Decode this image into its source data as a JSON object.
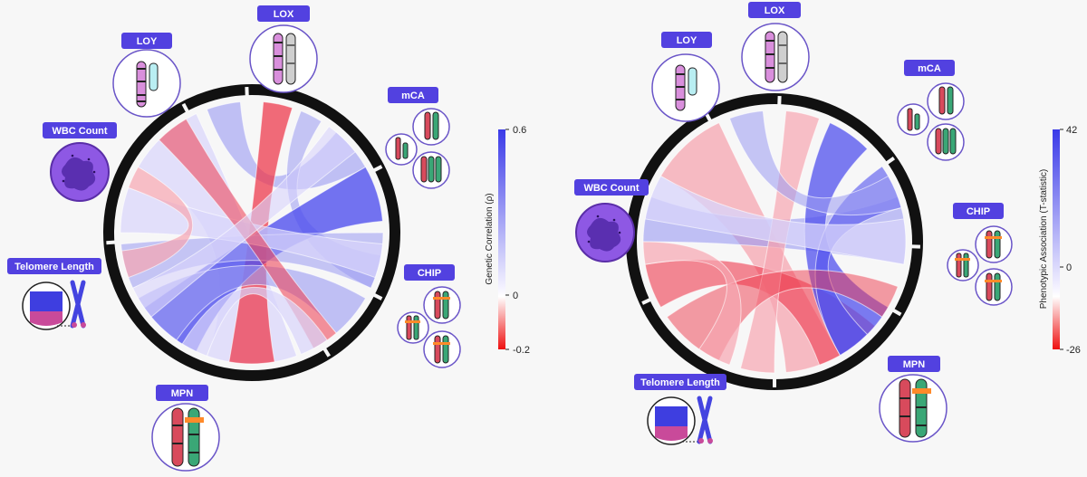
{
  "panels": [
    {
      "id": "left",
      "chord_colors": {
        "positive": "#3b3be6",
        "negative": "#e81a32",
        "neutral": "#ffffff"
      },
      "labels": {
        "loy": "LOY",
        "lox": "LOX",
        "mca": "mCA",
        "wbc": "WBC Count",
        "tl": "Telomere Length",
        "chip": "CHIP",
        "mpn": "MPN"
      },
      "colorbar": {
        "title": "Genetic Correlation (ρ)",
        "max_label": "0.6",
        "mid_label": "0",
        "min_label": "-0.2"
      }
    },
    {
      "id": "right",
      "chord_colors": {
        "positive": "#3b3be6",
        "negative": "#e81a32",
        "neutral": "#ffffff"
      },
      "labels": {
        "loy": "LOY",
        "lox": "LOX",
        "mca": "mCA",
        "wbc": "WBC Count",
        "tl": "Telomere Length",
        "chip": "CHIP",
        "mpn": "MPN"
      },
      "colorbar": {
        "title": "Phenotypic Association (T-statistic)",
        "max_label": "42",
        "mid_label": "0",
        "min_label": "-26"
      }
    }
  ],
  "icons": {
    "chromosome": "chromosome-icon",
    "cell": "white-blood-cell-icon",
    "telomere": "telomere-icon"
  }
}
